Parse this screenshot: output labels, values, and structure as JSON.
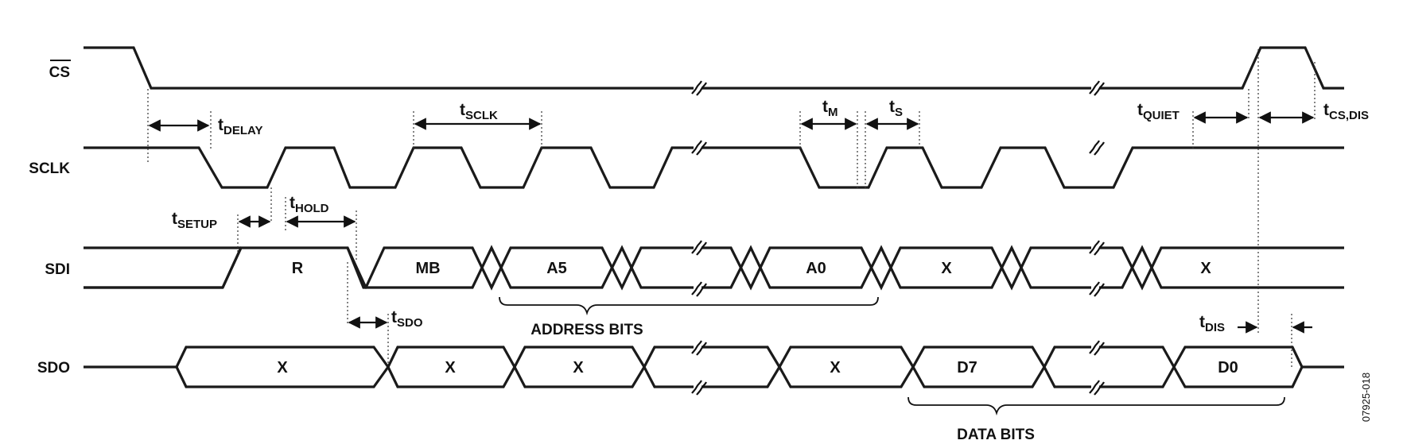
{
  "signals": {
    "cs": "CS",
    "sclk": "SCLK",
    "sdi": "SDI",
    "sdo": "SDO"
  },
  "sdi_segments": {
    "r": "R",
    "mb": "MB",
    "a5": "A5",
    "a0": "A0",
    "x1": "X",
    "x2": "X"
  },
  "sdo_segments": {
    "x1": "X",
    "x2": "X",
    "x3": "X",
    "x4": "X",
    "d7": "D7",
    "d0": "D0"
  },
  "timing": {
    "delay": {
      "t": "t",
      "sub": "DELAY"
    },
    "sclk": {
      "t": "t",
      "sub": "SCLK"
    },
    "m": {
      "t": "t",
      "sub": "M"
    },
    "s": {
      "t": "t",
      "sub": "S"
    },
    "quiet": {
      "t": "t",
      "sub": "QUIET"
    },
    "csdis": {
      "t": "t",
      "sub": "CS,DIS"
    },
    "setup": {
      "t": "t",
      "sub": "SETUP"
    },
    "hold": {
      "t": "t",
      "sub": "HOLD"
    },
    "sdo": {
      "t": "t",
      "sub": "SDO"
    },
    "dis": {
      "t": "t",
      "sub": "DIS"
    }
  },
  "brackets": {
    "address": "ADDRESS BITS",
    "data": "DATA BITS"
  },
  "figure_id": "07925-018"
}
